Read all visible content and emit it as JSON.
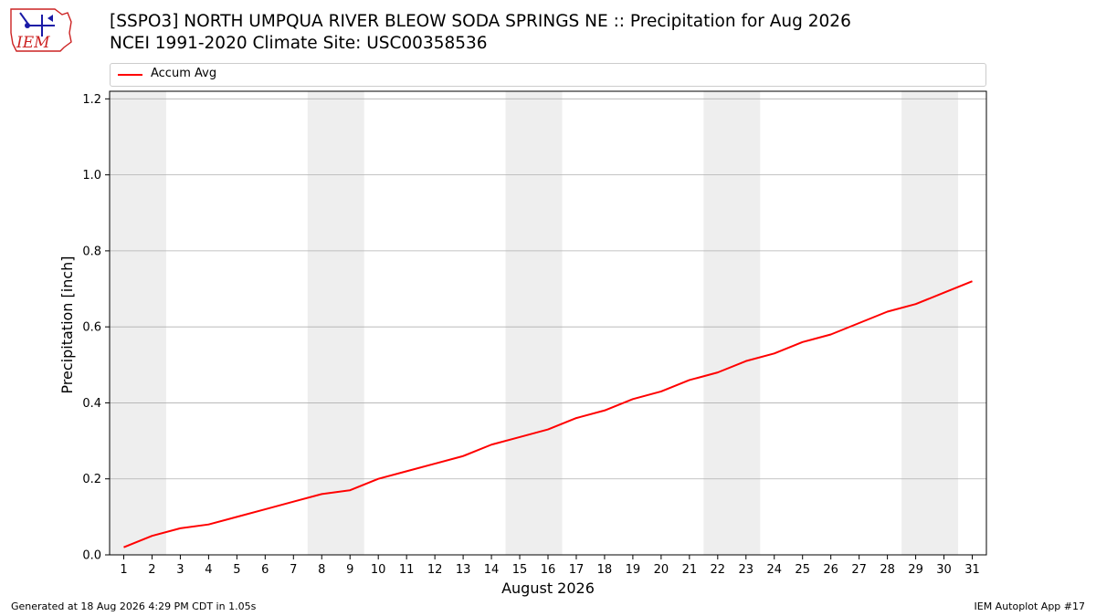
{
  "header": {
    "title_line1": "[SSPO3] NORTH UMPQUA RIVER BLEOW SODA SPRINGS NE :: Precipitation for Aug 2026",
    "title_line2": "NCEI 1991-2020 Climate Site: USC00358536"
  },
  "logo": {
    "text": "IEM"
  },
  "legend": {
    "entries": [
      "Accum Avg"
    ]
  },
  "footer": {
    "generated": "Generated at 18 Aug 2026 4:29 PM CDT in 1.05s",
    "app": "IEM Autoplot App #17"
  },
  "colors": {
    "line": "#ff0000",
    "weekend_band": "#eeeeee",
    "grid": "#b0b0b0",
    "logo": "#cc2222"
  },
  "chart_data": {
    "type": "line",
    "title": "[SSPO3] NORTH UMPQUA RIVER BLEOW SODA SPRINGS NE :: Precipitation for Aug 2026",
    "subtitle": "NCEI 1991-2020 Climate Site: USC00358536",
    "xlabel": "August 2026",
    "ylabel": "Precipitation [inch]",
    "x": [
      1,
      2,
      3,
      4,
      5,
      6,
      7,
      8,
      9,
      10,
      11,
      12,
      13,
      14,
      15,
      16,
      17,
      18,
      19,
      20,
      21,
      22,
      23,
      24,
      25,
      26,
      27,
      28,
      29,
      30,
      31
    ],
    "series": [
      {
        "name": "Accum Avg",
        "values": [
          0.02,
          0.05,
          0.07,
          0.08,
          0.1,
          0.12,
          0.14,
          0.16,
          0.17,
          0.2,
          0.22,
          0.24,
          0.26,
          0.29,
          0.31,
          0.33,
          0.36,
          0.38,
          0.41,
          0.43,
          0.46,
          0.48,
          0.51,
          0.53,
          0.56,
          0.58,
          0.61,
          0.64,
          0.66,
          0.69,
          0.72
        ]
      }
    ],
    "xlim": [
      0.5,
      31.5
    ],
    "ylim": [
      0,
      1.22
    ],
    "yticks": [
      "0.0",
      "0.2",
      "0.4",
      "0.6",
      "0.8",
      "1.0",
      "1.2"
    ],
    "weekend_bands": [
      [
        1,
        2
      ],
      [
        8,
        9
      ],
      [
        15,
        16
      ],
      [
        22,
        23
      ],
      [
        29,
        30
      ]
    ],
    "grid": "horizontal",
    "legend_position": "top"
  }
}
